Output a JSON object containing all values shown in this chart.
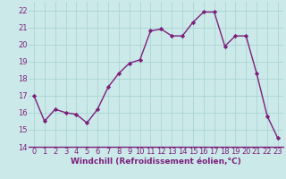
{
  "x": [
    0,
    1,
    2,
    3,
    4,
    5,
    6,
    7,
    8,
    9,
    10,
    11,
    12,
    13,
    14,
    15,
    16,
    17,
    18,
    19,
    20,
    21,
    22,
    23
  ],
  "y": [
    17.0,
    15.5,
    16.2,
    16.0,
    15.9,
    15.4,
    16.2,
    17.5,
    18.3,
    18.9,
    19.1,
    20.8,
    20.9,
    20.5,
    20.5,
    21.3,
    21.9,
    21.9,
    19.9,
    20.5,
    20.5,
    18.3,
    15.8,
    14.5
  ],
  "line_color": "#7b1f7b",
  "marker": "D",
  "marker_size": 2.2,
  "linewidth": 1.0,
  "bg_color": "#cce9e9",
  "grid_color": "#aad4d4",
  "xlabel": "Windchill (Refroidissement éolien,°C)",
  "xlim": [
    -0.5,
    23.5
  ],
  "ylim": [
    14,
    22.5
  ],
  "yticks": [
    14,
    15,
    16,
    17,
    18,
    19,
    20,
    21,
    22
  ],
  "xticks": [
    0,
    1,
    2,
    3,
    4,
    5,
    6,
    7,
    8,
    9,
    10,
    11,
    12,
    13,
    14,
    15,
    16,
    17,
    18,
    19,
    20,
    21,
    22,
    23
  ],
  "xlabel_fontsize": 6.5,
  "tick_fontsize": 6.0,
  "label_color": "#7b1f7b",
  "spine_color": "#7b1f7b"
}
